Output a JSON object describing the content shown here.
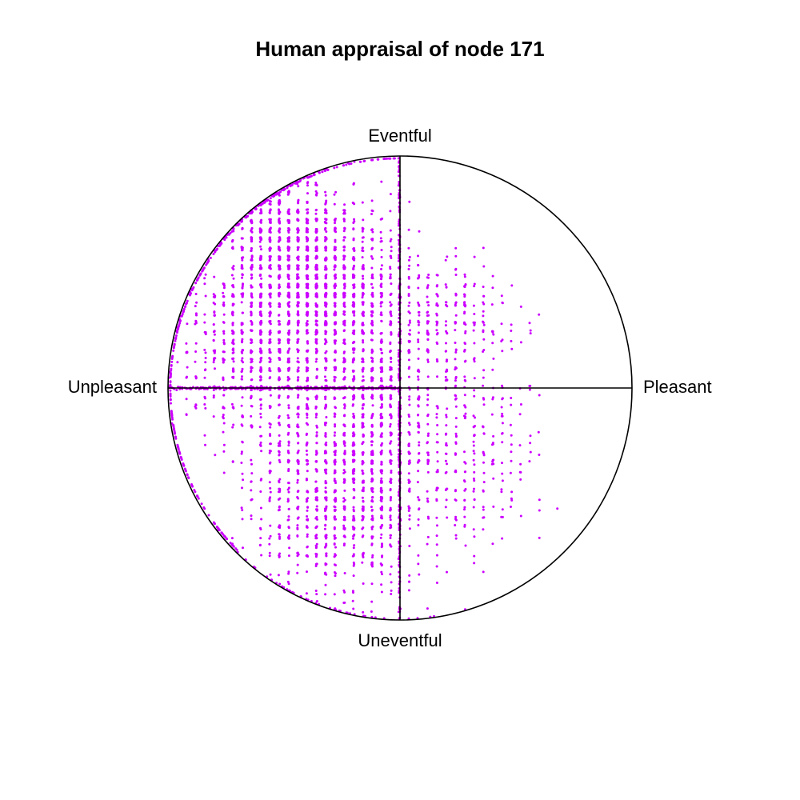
{
  "chart_data": {
    "type": "scatter",
    "title": "Human appraisal of node 171",
    "axis_labels": {
      "top": "Eventful",
      "bottom": "Uneventful",
      "left": "Unpleasant",
      "right": "Pleasant"
    },
    "x_range": [
      -1,
      1
    ],
    "y_range": [
      -1,
      1
    ],
    "point_color": "#cc00ff",
    "circle_color": "#000000",
    "grid": false,
    "clusters": [
      {
        "cx": -0.35,
        "cy": 0.42,
        "sx": 0.16,
        "sy": 0.2,
        "n": 1400
      },
      {
        "cx": -0.52,
        "cy": 0.65,
        "sx": 0.12,
        "sy": 0.12,
        "n": 500
      },
      {
        "cx": -0.65,
        "cy": 0.2,
        "sx": 0.15,
        "sy": 0.18,
        "n": 500
      },
      {
        "cx": -0.3,
        "cy": -0.35,
        "sx": 0.2,
        "sy": 0.28,
        "n": 1200
      },
      {
        "cx": -0.1,
        "cy": -0.15,
        "sx": 0.1,
        "sy": 0.35,
        "n": 500
      },
      {
        "cx": 0.2,
        "cy": 0.28,
        "sx": 0.14,
        "sy": 0.14,
        "n": 260
      },
      {
        "cx": 0.25,
        "cy": -0.28,
        "sx": 0.16,
        "sy": 0.22,
        "n": 300
      }
    ]
  }
}
